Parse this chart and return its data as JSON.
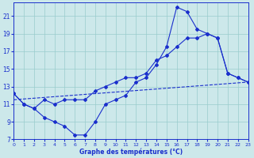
{
  "xlabel": "Graphe des températures (°C)",
  "bg_color": "#cce8ea",
  "grid_color": "#99cccc",
  "line_color": "#1a2fcc",
  "xlim": [
    0,
    23
  ],
  "ylim": [
    7,
    22.5
  ],
  "xticks": [
    0,
    1,
    2,
    3,
    4,
    5,
    6,
    7,
    8,
    9,
    10,
    11,
    12,
    13,
    14,
    15,
    16,
    17,
    18,
    19,
    20,
    21,
    22,
    23
  ],
  "yticks": [
    7,
    9,
    11,
    13,
    15,
    17,
    19,
    21
  ],
  "curve_high_x": [
    0,
    1,
    2,
    3,
    4,
    5,
    6,
    7,
    8,
    9,
    10,
    11,
    12,
    13,
    14,
    15,
    16,
    17,
    18,
    19,
    20,
    21,
    22,
    23
  ],
  "curve_high_y": [
    12.2,
    11.0,
    10.5,
    9.5,
    9.0,
    8.5,
    7.5,
    7.5,
    9.0,
    11.0,
    11.5,
    12.0,
    13.5,
    14.0,
    15.5,
    17.5,
    22.0,
    21.5,
    19.5,
    19.0,
    18.5,
    14.5,
    14.0,
    13.5
  ],
  "curve_med_x": [
    0,
    1,
    2,
    3,
    4,
    5,
    6,
    7,
    8,
    9,
    10,
    11,
    12,
    13,
    14,
    15,
    16,
    17,
    18,
    19,
    20,
    21,
    22,
    23
  ],
  "curve_med_y": [
    12.2,
    11.0,
    10.5,
    11.5,
    11.0,
    11.5,
    11.5,
    11.5,
    12.5,
    13.0,
    13.5,
    14.0,
    14.0,
    14.5,
    16.0,
    16.5,
    17.5,
    18.5,
    18.5,
    19.0,
    18.5,
    14.5,
    14.0,
    13.5
  ],
  "line_x": [
    0,
    23
  ],
  "line_y": [
    11.5,
    13.5
  ]
}
